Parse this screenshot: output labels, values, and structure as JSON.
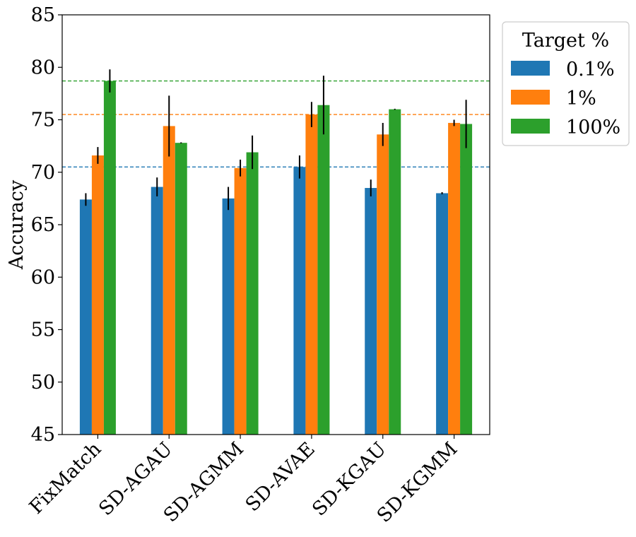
{
  "chart_data": {
    "type": "bar",
    "ylabel": "Accuracy",
    "xlabel": "",
    "ylim": [
      45,
      85
    ],
    "yticks": [
      45,
      50,
      55,
      60,
      65,
      70,
      75,
      80,
      85
    ],
    "categories": [
      "FixMatch",
      "SD-AGAU",
      "SD-AGMM",
      "SD-AVAE",
      "SD-KGAU",
      "SD-KGMM"
    ],
    "legend_title": "Target %",
    "legend_position": "outside-top-right",
    "grid": false,
    "series": [
      {
        "name": "0.1%",
        "color": "#1f77b4",
        "values": [
          67.4,
          68.6,
          67.5,
          70.5,
          68.5,
          68.0
        ],
        "errors": [
          0.6,
          0.9,
          1.1,
          1.1,
          0.8,
          0.1
        ]
      },
      {
        "name": "1%",
        "color": "#ff7f0e",
        "values": [
          71.6,
          74.4,
          70.4,
          75.5,
          73.6,
          74.7
        ],
        "errors": [
          0.8,
          2.9,
          0.8,
          1.2,
          1.1,
          0.3
        ]
      },
      {
        "name": "100%",
        "color": "#2ca02c",
        "values": [
          78.7,
          72.8,
          71.9,
          76.4,
          76.0,
          74.6
        ],
        "errors": [
          1.1,
          0.05,
          1.6,
          2.8,
          0.05,
          2.3
        ]
      }
    ],
    "reference_lines": [
      {
        "value": 70.5,
        "color": "#1f77b4"
      },
      {
        "value": 75.5,
        "color": "#ff7f0e"
      },
      {
        "value": 78.7,
        "color": "#2ca02c"
      }
    ]
  }
}
